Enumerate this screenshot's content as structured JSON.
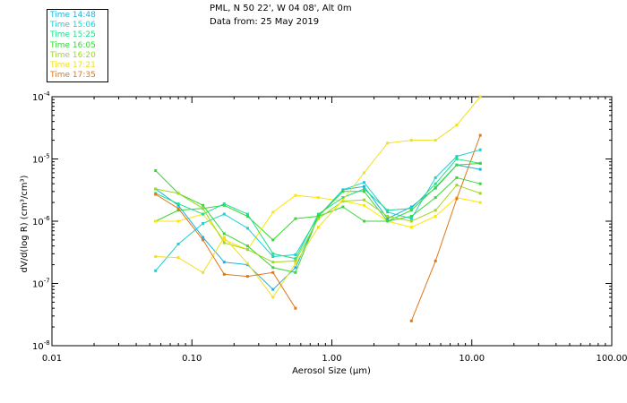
{
  "header": {
    "title": "PML, N 50 22', W 04 08', Alt 0m",
    "date": "Data from: 25 May 2019"
  },
  "chart_data": {
    "type": "line",
    "xscale": "log",
    "yscale": "log",
    "xlabel": "Aerosol Size (μm)",
    "ylabel": "dV/d(log R)  (cm³/cm³)",
    "xlim": [
      0.01,
      100
    ],
    "ylim": [
      1e-08,
      0.0001
    ],
    "xticks": [
      0.01,
      0.1,
      1,
      10,
      100
    ],
    "xtick_labels": [
      "0.01",
      "0.10",
      "1.00",
      "10.00",
      "100.00"
    ],
    "yticks": [
      1e-08,
      1e-07,
      1e-06,
      1e-05,
      0.0001
    ],
    "ytick_mantissa": [
      "10",
      "10",
      "10",
      "10",
      "10"
    ],
    "ytick_exponents": [
      "-8",
      "-7",
      "-6",
      "-5",
      "-4"
    ],
    "x": [
      0.055,
      0.08,
      0.12,
      0.17,
      0.25,
      0.38,
      0.55,
      0.8,
      1.2,
      1.7,
      2.5,
      3.7,
      5.5,
      7.8,
      11.5
    ],
    "series": [
      {
        "name": "Time 14:48",
        "color": "#1ab4e0",
        "values": [
          3.3e-06,
          1.8e-06,
          5.5e-07,
          2.2e-07,
          2e-07,
          8e-08,
          1.8e-07,
          1.2e-06,
          3.2e-06,
          3.6e-06,
          1.1e-06,
          1.7e-06,
          3.4e-06,
          8e-06,
          6.8e-06
        ]
      },
      {
        "name": "Time 15:06",
        "color": "#1ad2d2",
        "values": [
          1.6e-07,
          4.3e-07,
          9.2e-07,
          1.3e-06,
          7.7e-07,
          2.7e-07,
          2.9e-07,
          1.2e-06,
          3.2e-06,
          4.2e-06,
          1.4e-06,
          1.1e-06,
          5e-06,
          1.1e-05,
          1.4e-05
        ]
      },
      {
        "name": "Time 15:25",
        "color": "#1ee08c",
        "values": [
          2.8e-06,
          1.9e-06,
          1.3e-06,
          1.9e-06,
          1.3e-06,
          3e-07,
          2.5e-07,
          1.3e-06,
          2.4e-06,
          3.3e-06,
          1.5e-06,
          1.6e-06,
          4e-06,
          1e-05,
          8.5e-06
        ]
      },
      {
        "name": "Time 16:05",
        "color": "#38d838",
        "values": [
          6.5e-06,
          2.8e-06,
          1.8e-06,
          6.3e-07,
          4e-07,
          1.8e-07,
          1.5e-07,
          1.2e-06,
          3e-06,
          3e-06,
          1e-06,
          1.5e-06,
          3.5e-06,
          8e-06,
          8.5e-06
        ]
      },
      {
        "name": "Time 16:20",
        "color": "#a0d81e",
        "values": [
          3.3e-06,
          2.8e-06,
          1.6e-06,
          4.5e-07,
          3.5e-07,
          2.2e-07,
          2.3e-07,
          1.1e-06,
          2.1e-06,
          2.2e-06,
          1.2e-06,
          1e-06,
          1.5e-06,
          3.8e-06,
          2.8e-06
        ]
      },
      {
        "name": "Time 17:21",
        "color": "#f0e020",
        "values": [
          2.7e-07,
          2.6e-07,
          1.5e-07,
          5.5e-07,
          2.1e-07,
          6e-08,
          2.1e-07,
          8e-07,
          2.2e-06,
          6e-06,
          1.8e-05,
          2e-05,
          2e-05,
          3.5e-05,
          0.0001
        ]
      },
      {
        "name": "Time 17:35",
        "color": "#e07818",
        "values": [
          2.7e-06,
          1.6e-06,
          5e-07,
          1.4e-07,
          1.3e-07,
          1.5e-07,
          4e-08,
          null,
          null,
          null,
          null,
          2.5e-08,
          2.3e-07,
          2.3e-06,
          2.4e-05
        ]
      }
    ],
    "extra_series": [
      {
        "name": "",
        "color": "#38d838",
        "values": [
          1e-06,
          1.5e-06,
          1.6e-06,
          1.8e-06,
          1.2e-06,
          5e-07,
          1.1e-06,
          1.2e-06,
          1.7e-06,
          1e-06,
          1e-06,
          1.2e-06,
          2.4e-06,
          5e-06,
          4e-06
        ]
      },
      {
        "name": "",
        "color": "#ffe600",
        "values": [
          1e-06,
          1e-06,
          1.3e-06,
          5e-07,
          3.5e-07,
          1.4e-06,
          2.6e-06,
          2.4e-06,
          2.1e-06,
          1.8e-06,
          1e-06,
          8e-07,
          1.2e-06,
          2.4e-06,
          2e-06
        ]
      }
    ]
  }
}
